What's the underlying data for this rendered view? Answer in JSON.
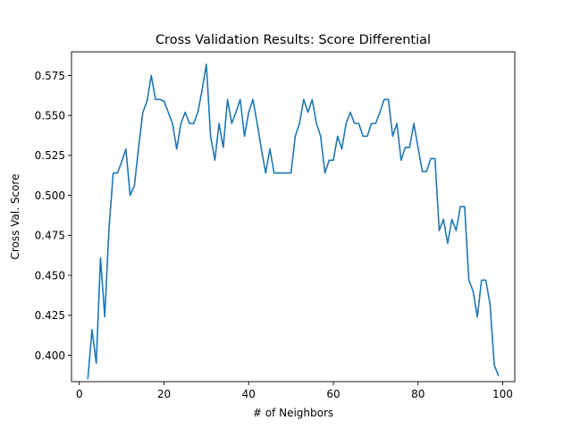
{
  "chart_data": {
    "type": "line",
    "title": "Cross Validation Results: Score Differential",
    "xlabel": "# of Neighbors",
    "ylabel": "Cross Val. Score",
    "xlim": [
      -1.85,
      102.85
    ],
    "ylim": [
      0.3835,
      0.5898
    ],
    "xticks": [
      0,
      20,
      40,
      60,
      80,
      100
    ],
    "xtick_labels": [
      "0",
      "20",
      "40",
      "60",
      "80",
      "100"
    ],
    "yticks": [
      0.4,
      0.425,
      0.45,
      0.475,
      0.5,
      0.525,
      0.55,
      0.575
    ],
    "ytick_labels": [
      "0.400",
      "0.425",
      "0.450",
      "0.475",
      "0.500",
      "0.525",
      "0.550",
      "0.575"
    ],
    "grid": false,
    "series": [
      {
        "color": "#1f77b4",
        "x": [
          2,
          3,
          4,
          5,
          6,
          7,
          8,
          9,
          10,
          11,
          12,
          13,
          14,
          15,
          16,
          17,
          18,
          19,
          20,
          21,
          22,
          23,
          24,
          25,
          26,
          27,
          28,
          29,
          30,
          31,
          32,
          33,
          34,
          35,
          36,
          37,
          38,
          39,
          40,
          41,
          42,
          43,
          44,
          45,
          46,
          47,
          48,
          49,
          50,
          51,
          52,
          53,
          54,
          55,
          56,
          57,
          58,
          59,
          60,
          61,
          62,
          63,
          64,
          65,
          66,
          67,
          68,
          69,
          70,
          71,
          72,
          73,
          74,
          75,
          76,
          77,
          78,
          79,
          80,
          81,
          82,
          83,
          84,
          85,
          86,
          87,
          88,
          89,
          90,
          91,
          92,
          93,
          94,
          95,
          96,
          97,
          98,
          99
        ],
        "y": [
          0.385,
          0.416,
          0.395,
          0.461,
          0.424,
          0.479,
          0.514,
          0.514,
          0.521,
          0.529,
          0.5,
          0.506,
          0.53,
          0.552,
          0.559,
          0.575,
          0.56,
          0.56,
          0.559,
          0.552,
          0.545,
          0.529,
          0.545,
          0.552,
          0.545,
          0.545,
          0.552,
          0.566,
          0.582,
          0.537,
          0.522,
          0.545,
          0.53,
          0.56,
          0.545,
          0.552,
          0.56,
          0.537,
          0.552,
          0.56,
          0.545,
          0.529,
          0.514,
          0.529,
          0.514,
          0.514,
          0.514,
          0.514,
          0.514,
          0.537,
          0.545,
          0.56,
          0.552,
          0.56,
          0.545,
          0.537,
          0.514,
          0.522,
          0.522,
          0.537,
          0.529,
          0.545,
          0.552,
          0.545,
          0.545,
          0.537,
          0.537,
          0.545,
          0.545,
          0.552,
          0.56,
          0.56,
          0.537,
          0.545,
          0.522,
          0.53,
          0.53,
          0.545,
          0.53,
          0.515,
          0.515,
          0.523,
          0.523,
          0.478,
          0.485,
          0.47,
          0.485,
          0.478,
          0.493,
          0.493,
          0.447,
          0.44,
          0.424,
          0.447,
          0.447,
          0.432,
          0.394,
          0.387
        ]
      }
    ]
  }
}
